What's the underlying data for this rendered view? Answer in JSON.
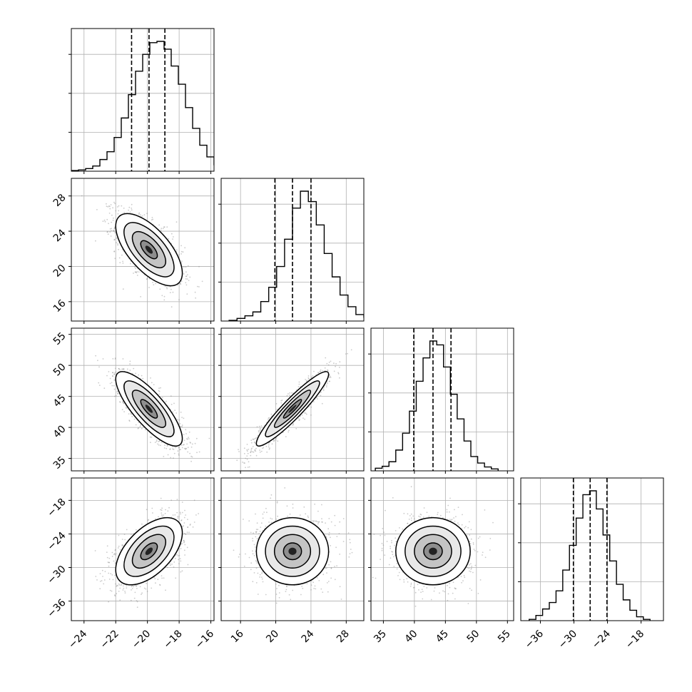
{
  "chart_data": {
    "type": "corner",
    "parameters": [
      "",
      "",
      "",
      ""
    ],
    "axis_ranges": [
      [
        -24.8,
        -15.8
      ],
      [
        13.8,
        30.0
      ],
      [
        33.0,
        56.0
      ],
      [
        -39.5,
        -14.0
      ]
    ],
    "ticks": [
      {
        "values": [
          -24,
          -22,
          -20,
          -18,
          -16
        ],
        "labels": [
          "−24",
          "−22",
          "−20",
          "−18",
          "−16"
        ]
      },
      {
        "values": [
          16,
          20,
          24,
          28
        ],
        "labels": [
          "16",
          "20",
          "24",
          "28"
        ]
      },
      {
        "values": [
          35,
          40,
          45,
          50,
          55
        ],
        "labels": [
          "35",
          "40",
          "45",
          "50",
          "55"
        ]
      },
      {
        "values": [
          -36,
          -30,
          -24,
          -18
        ],
        "labels": [
          "−36",
          "−30",
          "−24",
          "−18"
        ]
      }
    ],
    "quantiles": [
      [
        -21.0,
        -19.9,
        -18.9
      ],
      [
        19.9,
        21.9,
        24.0
      ],
      [
        39.9,
        43.0,
        45.9
      ],
      [
        -30.1,
        -27.1,
        -24.1
      ]
    ],
    "histograms": [
      {
        "edges_start": -24.8,
        "bin_width": 0.45,
        "counts": [
          0.005,
          0.01,
          0.02,
          0.04,
          0.09,
          0.15,
          0.26,
          0.41,
          0.59,
          0.77,
          0.9,
          0.99,
          1.0,
          0.94,
          0.81,
          0.67,
          0.49,
          0.33,
          0.2,
          0.11,
          0.05,
          0.03,
          0.015,
          0.005
        ]
      },
      {
        "edges_start": 14.7,
        "bin_width": 0.9,
        "counts": [
          0.005,
          0.02,
          0.04,
          0.07,
          0.15,
          0.26,
          0.42,
          0.63,
          0.87,
          1.0,
          0.92,
          0.74,
          0.52,
          0.34,
          0.2,
          0.11,
          0.05,
          0.03,
          0.02
        ]
      },
      {
        "edges_start": 33.7,
        "bin_width": 1.1,
        "counts": [
          0.02,
          0.035,
          0.07,
          0.16,
          0.29,
          0.46,
          0.69,
          0.87,
          1.0,
          0.97,
          0.8,
          0.59,
          0.4,
          0.23,
          0.11,
          0.06,
          0.03,
          0.015
        ]
      },
      {
        "edges_start": -38.0,
        "bin_width": 1.2,
        "counts": [
          0.01,
          0.04,
          0.09,
          0.14,
          0.23,
          0.39,
          0.58,
          0.79,
          0.97,
          1.0,
          0.86,
          0.66,
          0.46,
          0.28,
          0.16,
          0.08,
          0.03,
          0.01
        ]
      }
    ],
    "distribution": {
      "mean": [
        -19.9,
        21.9,
        43.0,
        -27.1
      ],
      "std": [
        1.05,
        2.05,
        3.0,
        3.0
      ],
      "correlation": [
        [
          1.0,
          -0.65,
          -0.8,
          0.55
        ],
        [
          -0.65,
          1.0,
          0.93,
          0.0
        ],
        [
          -0.8,
          0.93,
          1.0,
          0.0
        ],
        [
          0.55,
          0.0,
          0.0,
          1.0
        ]
      ]
    },
    "contour_levels_sigma": [
      0.5,
      1.0,
      1.5,
      2.0
    ],
    "grid": true,
    "legend": "none",
    "title": "",
    "xlabel": "",
    "ylabel": ""
  }
}
